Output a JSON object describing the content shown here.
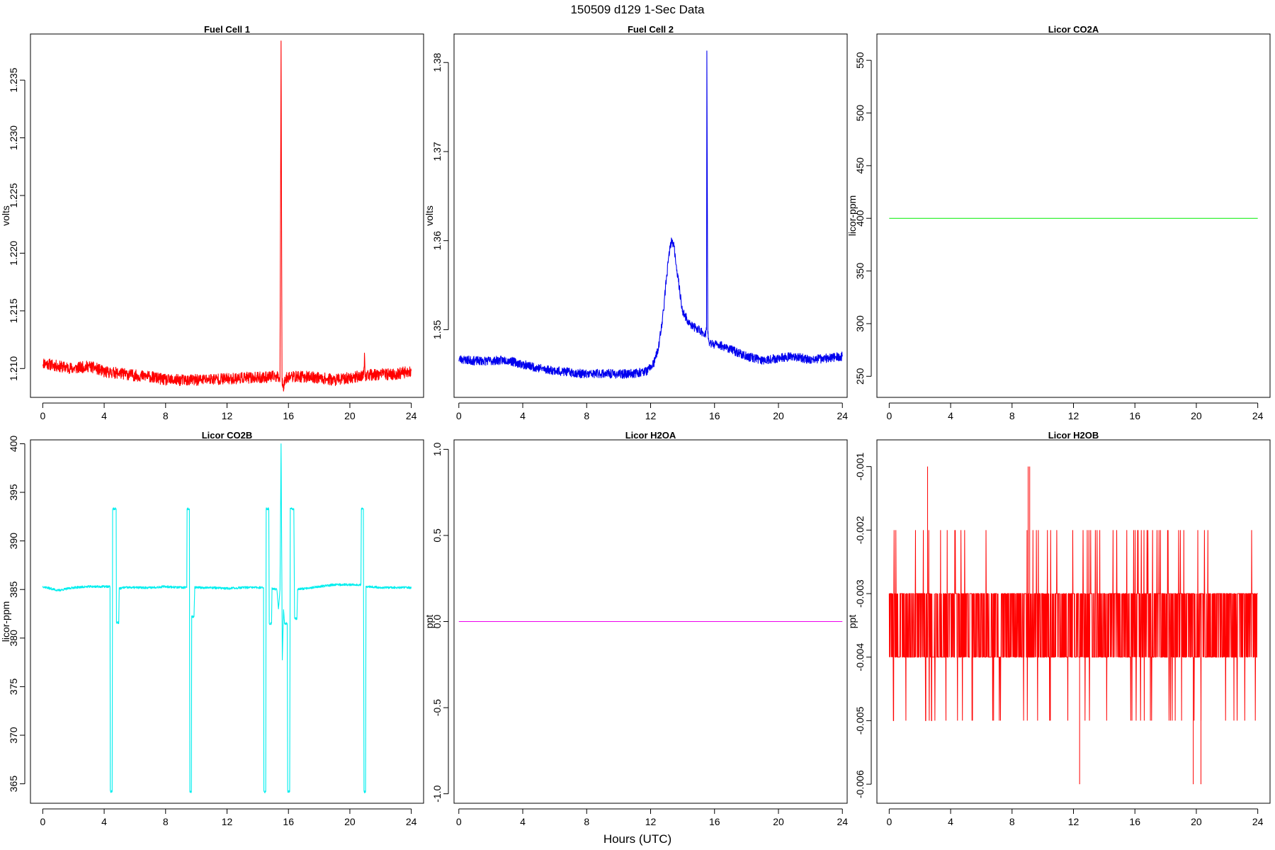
{
  "figure": {
    "title": "150509   d129   1-Sec Data",
    "xlabel": "Hours (UTC)"
  },
  "chart_data": [
    {
      "type": "line",
      "title": "Fuel Cell 1",
      "ylabel": "volts",
      "color": "#ff0000",
      "xlim": [
        -0.8,
        24.8
      ],
      "ylim": [
        1.2075,
        1.239
      ],
      "xticks": [
        0,
        4,
        8,
        12,
        16,
        20,
        24
      ],
      "yticks": [
        1.21,
        1.215,
        1.22,
        1.225,
        1.23,
        1.235
      ],
      "ytick_labels": [
        "1.210",
        "1.215",
        "1.220",
        "1.225",
        "1.230",
        "1.235"
      ],
      "noise": 0.0005,
      "noise_seed": 11,
      "x": [
        0,
        1,
        2,
        3,
        3.5,
        4,
        5,
        6,
        7,
        8,
        9,
        10,
        11,
        12,
        13,
        14,
        15,
        15.45,
        15.52,
        15.58,
        15.65,
        15.75,
        16,
        17,
        18,
        19,
        20,
        20.9,
        20.95,
        21,
        22,
        23,
        24
      ],
      "y": [
        1.2105,
        1.2102,
        1.21,
        1.2102,
        1.21,
        1.2097,
        1.2096,
        1.2094,
        1.2093,
        1.209,
        1.209,
        1.209,
        1.2091,
        1.2091,
        1.2092,
        1.2092,
        1.2093,
        1.2093,
        1.2384,
        1.209,
        1.2083,
        1.209,
        1.2093,
        1.2093,
        1.2092,
        1.209,
        1.2092,
        1.2094,
        1.211,
        1.2094,
        1.2095,
        1.2095,
        1.2098
      ]
    },
    {
      "type": "line",
      "title": "Fuel Cell 2",
      "ylabel": "volts",
      "color": "#0000ee",
      "xlim": [
        -0.3,
        24.3
      ],
      "ylim": [
        1.3424,
        1.3832
      ],
      "xticks": [
        0,
        4,
        8,
        12,
        16,
        20,
        24
      ],
      "yticks": [
        1.35,
        1.36,
        1.37,
        1.38
      ],
      "ytick_labels": [
        "1.35",
        "1.36",
        "1.37",
        "1.38"
      ],
      "noise": 0.0005,
      "noise_seed": 23,
      "x": [
        0,
        1,
        2,
        3,
        4,
        5,
        6,
        7,
        8,
        9,
        10,
        11,
        11.8,
        12.2,
        12.5,
        12.8,
        13.0,
        13.2,
        13.3,
        13.45,
        13.7,
        14.0,
        14.5,
        15.0,
        15.45,
        15.5,
        15.52,
        15.58,
        15.65,
        15.8,
        16.5,
        17,
        18,
        19,
        20,
        21,
        22,
        23,
        24
      ],
      "y": [
        1.3467,
        1.3465,
        1.3465,
        1.3466,
        1.3461,
        1.3457,
        1.3454,
        1.3452,
        1.345,
        1.3451,
        1.345,
        1.3451,
        1.3454,
        1.3462,
        1.348,
        1.352,
        1.356,
        1.359,
        1.36,
        1.3595,
        1.356,
        1.352,
        1.3505,
        1.35,
        1.3495,
        1.35,
        1.3813,
        1.35,
        1.3484,
        1.3484,
        1.3482,
        1.3478,
        1.347,
        1.3466,
        1.3468,
        1.347,
        1.3466,
        1.3468,
        1.347
      ]
    },
    {
      "type": "line",
      "title": "Licor CO2A",
      "ylabel": "licor-ppm",
      "color": "#00ee00",
      "xlim": [
        -0.8,
        24.8
      ],
      "ylim": [
        230,
        575
      ],
      "xticks": [
        0,
        4,
        8,
        12,
        16,
        20,
        24
      ],
      "yticks": [
        250,
        300,
        350,
        400,
        450,
        500,
        550
      ],
      "ytick_labels": [
        "250",
        "300",
        "350",
        "400",
        "450",
        "500",
        "550"
      ],
      "noise": 0,
      "noise_seed": 1,
      "x": [
        0,
        24
      ],
      "y": [
        400,
        400
      ]
    },
    {
      "type": "line",
      "title": "Licor CO2B",
      "ylabel": "licor-ppm",
      "color": "#00eeee",
      "xlim": [
        -0.8,
        24.8
      ],
      "ylim": [
        363,
        400.4
      ],
      "xticks": [
        0,
        4,
        8,
        12,
        16,
        20,
        24
      ],
      "yticks": [
        365,
        370,
        375,
        380,
        385,
        390,
        395,
        400
      ],
      "ytick_labels": [
        "365",
        "370",
        "375",
        "380",
        "385",
        "390",
        "395",
        "400"
      ],
      "noise": 0.12,
      "noise_seed": 37,
      "x": [
        0,
        0.5,
        1,
        2,
        3,
        4,
        4.38,
        4.4,
        4.52,
        4.55,
        4.78,
        4.8,
        4.95,
        4.98,
        5.3,
        6,
        7,
        8,
        9,
        9.38,
        9.4,
        9.55,
        9.58,
        9.68,
        9.7,
        9.85,
        9.9,
        10.2,
        11,
        12,
        13,
        14,
        14.38,
        14.4,
        14.52,
        14.55,
        14.72,
        14.75,
        14.9,
        14.93,
        15.25,
        15.35,
        15.45,
        15.52,
        15.6,
        15.68,
        15.75,
        15.85,
        15.92,
        15.95,
        16.08,
        16.12,
        16.35,
        16.4,
        16.55,
        16.6,
        17,
        18,
        19,
        20,
        20.72,
        20.75,
        20.88,
        20.92,
        21.02,
        21.05,
        21.3,
        22,
        23,
        24
      ],
      "y": [
        385.3,
        385.1,
        384.9,
        385.2,
        385.3,
        385.3,
        385.3,
        364.2,
        364.2,
        393.3,
        393.3,
        381.6,
        381.6,
        385.1,
        385.2,
        385.2,
        385.2,
        385.3,
        385.2,
        385.2,
        393.3,
        393.3,
        364.2,
        364.2,
        382.2,
        382.2,
        385.2,
        385.2,
        385.2,
        385.1,
        385.2,
        385.2,
        385.2,
        364.2,
        364.2,
        393.3,
        393.3,
        381.5,
        381.5,
        385.1,
        385.0,
        383.0,
        385.0,
        400.0,
        377.8,
        383.0,
        381.5,
        381.5,
        381.5,
        364.2,
        364.2,
        393.3,
        393.3,
        382.0,
        382.0,
        385.0,
        385.1,
        385.3,
        385.5,
        385.5,
        385.5,
        393.3,
        393.3,
        364.2,
        364.2,
        385.3,
        385.3,
        385.2,
        385.2,
        385.2
      ]
    },
    {
      "type": "line",
      "title": "Licor H2OA",
      "ylabel": "ppt",
      "color": "#ee00ee",
      "xlim": [
        -0.3,
        24.3
      ],
      "ylim": [
        -1.055,
        1.055
      ],
      "xticks": [
        0,
        4,
        8,
        12,
        16,
        20,
        24
      ],
      "yticks": [
        -1.0,
        -0.5,
        0.0,
        0.5,
        1.0
      ],
      "ytick_labels": [
        "-1.0",
        "-0.5",
        "0.0",
        "0.5",
        "1.0"
      ],
      "noise": 0,
      "noise_seed": 2,
      "x": [
        0,
        24
      ],
      "y": [
        0,
        0
      ]
    },
    {
      "type": "line",
      "title": "Licor H2OB",
      "ylabel": "ppt",
      "color": "#ff0000",
      "xlim": [
        -0.8,
        24.8
      ],
      "ylim": [
        -0.0063,
        -0.00058
      ],
      "xticks": [
        0,
        4,
        8,
        12,
        16,
        20,
        24
      ],
      "yticks": [
        -0.006,
        -0.005,
        -0.004,
        -0.003,
        -0.002,
        -0.001
      ],
      "ytick_labels": [
        "-0.006",
        "-0.005",
        "-0.004",
        "-0.003",
        "-0.002",
        "-0.001"
      ],
      "noise": 0,
      "noise_seed": 53,
      "digital": {
        "base": [
          -0.003,
          -0.004
        ],
        "rare": [
          -0.002,
          -0.005
        ],
        "rare_prob": 0.07,
        "gap_x": 15.55,
        "spikes_up": [
          2.5,
          9.05,
          9.15
        ],
        "spike_up_value": -0.001,
        "spikes_down": [
          12.4,
          19.8,
          20.3
        ],
        "spike_down_value": -0.006
      },
      "x": [
        0,
        24
      ],
      "y": [
        -0.003,
        -0.004
      ]
    }
  ]
}
